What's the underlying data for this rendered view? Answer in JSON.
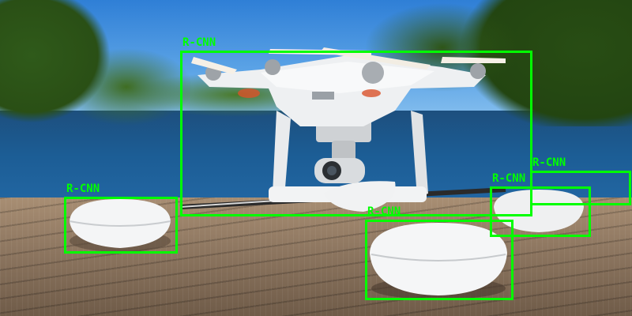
{
  "detections": [
    {
      "label": "R-CNN"
    },
    {
      "label": "R-CNN"
    },
    {
      "label": "R-CNN"
    },
    {
      "label": "R-CNN"
    },
    {
      "label": "R-CNN"
    },
    {
      "label": "R-CNN"
    }
  ],
  "colors": {
    "box": "#00ff00",
    "sky": "#5ba3e6",
    "water": "#1c5d95",
    "dock": "#8d7660",
    "drone": "#eef0f2"
  }
}
